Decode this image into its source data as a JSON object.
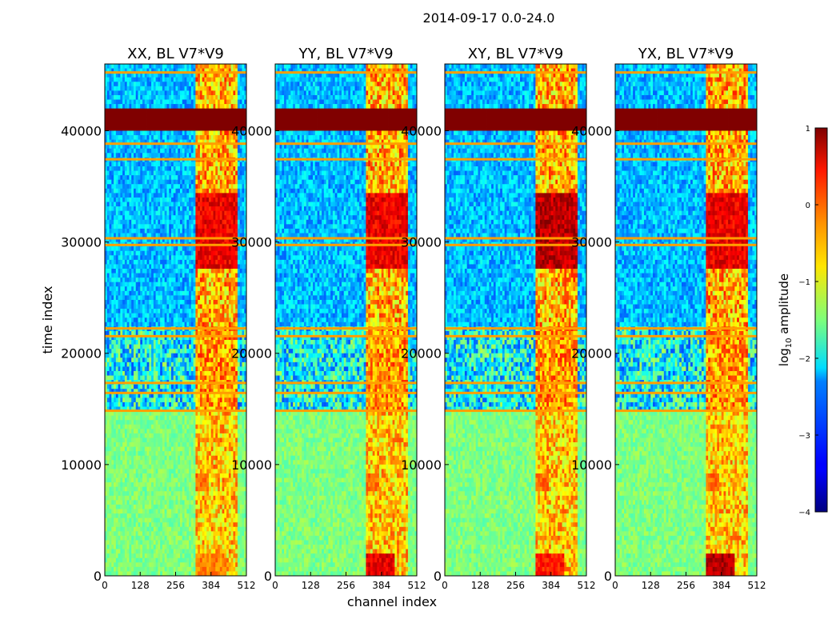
{
  "chart_data": {
    "type": "heatmap",
    "title": "2014-09-17 0.0-24.0",
    "xlabel": "channel index",
    "ylabel": "time index",
    "xlim": [
      0,
      512
    ],
    "ylim": [
      0,
      46000
    ],
    "x_ticks": [
      "0",
      "128",
      "256",
      "384",
      "512"
    ],
    "x_tick_values": [
      0,
      128,
      256,
      384,
      512
    ],
    "y_ticks": [
      "0",
      "10000",
      "20000",
      "30000",
      "40000"
    ],
    "y_tick_values": [
      0,
      10000,
      20000,
      30000,
      40000
    ],
    "panels": [
      {
        "title": "XX, BL V7*V9",
        "band_channels": [
          327,
          480
        ],
        "burst_level": 0.95,
        "low_band_burst": 0.7
      },
      {
        "title": "YY, BL V7*V9",
        "band_channels": [
          327,
          480
        ],
        "burst_level": 0.95,
        "low_band_burst": 0.85
      },
      {
        "title": "XY, BL V7*V9",
        "band_channels": [
          327,
          480
        ],
        "burst_level": 1.0,
        "low_band_burst": 0.8
      },
      {
        "title": "YX, BL V7*V9",
        "band_channels": [
          327,
          480
        ],
        "burst_level": 0.95,
        "low_band_burst": 0.9
      }
    ],
    "saturated_time_range": [
      40000,
      42000
    ],
    "quiet_time_range": [
      0,
      14800
    ],
    "rfi_time_range": [
      14800,
      22500
    ],
    "flagged_rows": [
      14800,
      16400,
      17300,
      21500,
      22200,
      29700,
      30300,
      37400,
      38800,
      45200
    ],
    "colorbar": {
      "label": "log₁₀ amplitude",
      "label_main": "log",
      "label_sub": "10",
      "label_rest": " amplitude",
      "range": [
        -4,
        1
      ],
      "ticks": [
        "1",
        "0",
        "−1",
        "−2",
        "−3",
        "−4"
      ],
      "tick_values": [
        1,
        0,
        -1,
        -2,
        -3,
        -4
      ],
      "colormap": "jet"
    }
  }
}
